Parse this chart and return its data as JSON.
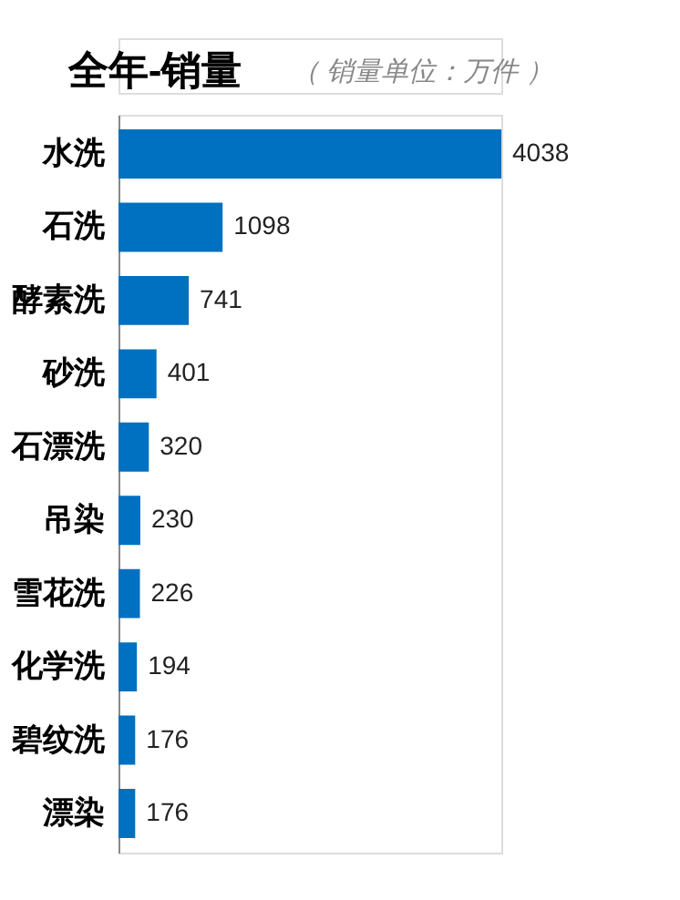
{
  "chart_data": {
    "type": "bar",
    "orientation": "horizontal",
    "title": "全年-销量",
    "subtitle": "（ 销量单位：万件 ）",
    "categories": [
      "水洗",
      "石洗",
      "酵素洗",
      "砂洗",
      "石漂洗",
      "吊染",
      "雪花洗",
      "化学洗",
      "碧纹洗",
      "漂染"
    ],
    "values": [
      4038,
      1098,
      741,
      401,
      320,
      230,
      226,
      194,
      176,
      176
    ],
    "color": "#0070c0",
    "data_labels": true,
    "grid": false
  }
}
